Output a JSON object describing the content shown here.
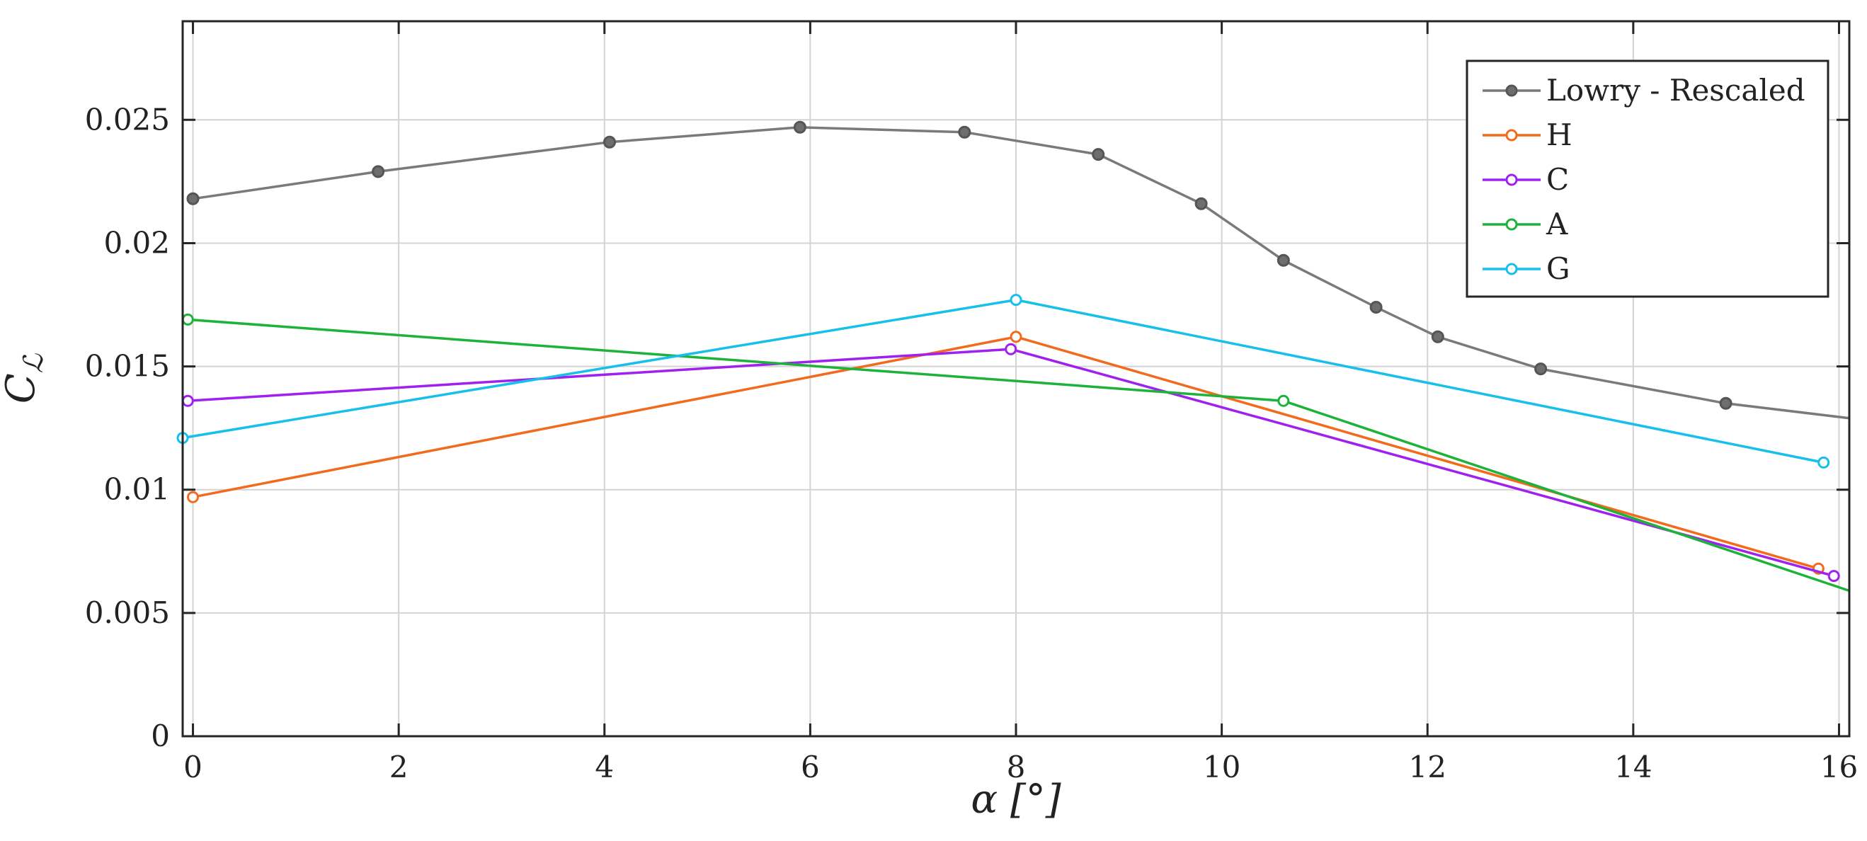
{
  "chart_data": {
    "type": "line",
    "title": "",
    "xlabel": "α [°]",
    "ylabel": "C_ℒ",
    "xlim": [
      -0.1,
      16.1
    ],
    "ylim": [
      0,
      0.029
    ],
    "x_ticks": [
      0,
      2,
      4,
      6,
      8,
      10,
      12,
      14,
      16
    ],
    "x_tick_labels": [
      "0",
      "2",
      "4",
      "6",
      "8",
      "10",
      "12",
      "14",
      "16"
    ],
    "y_ticks": [
      0,
      0.005,
      0.01,
      0.015,
      0.02,
      0.025
    ],
    "y_tick_labels": [
      "0",
      "0.005",
      "0.01",
      "0.015",
      "0.02",
      "0.025"
    ],
    "grid": true,
    "legend_position": "top-right",
    "series": [
      {
        "name": "Lowry - Rescaled",
        "color": "#7a7a7a",
        "marker": "filled-circle",
        "x": [
          0,
          1.8,
          4.05,
          5.9,
          7.5,
          8.8,
          9.8,
          10.6,
          11.5,
          12.1,
          13.1,
          14.9,
          16.1
        ],
        "y": [
          0.0218,
          0.0229,
          0.0241,
          0.0247,
          0.0245,
          0.0236,
          0.0216,
          0.0193,
          0.0174,
          0.0162,
          0.0149,
          0.0135,
          0.0129
        ],
        "markers_on": [
          true,
          true,
          true,
          true,
          true,
          true,
          true,
          true,
          true,
          true,
          true,
          true,
          false
        ]
      },
      {
        "name": "H",
        "color": "#f26b1d",
        "marker": "open-circle",
        "x": [
          0,
          8,
          15.8
        ],
        "y": [
          0.0097,
          0.0162,
          0.0068
        ],
        "markers_on": [
          true,
          true,
          true
        ]
      },
      {
        "name": "C",
        "color": "#a020f0",
        "marker": "open-circle",
        "x": [
          -0.05,
          7.95,
          15.95
        ],
        "y": [
          0.0136,
          0.0157,
          0.0065
        ],
        "markers_on": [
          true,
          true,
          true
        ]
      },
      {
        "name": "A",
        "color": "#1db33a",
        "marker": "open-circle",
        "x": [
          -0.05,
          10.6,
          16.1
        ],
        "y": [
          0.0169,
          0.0136,
          0.0059
        ],
        "markers_on": [
          true,
          true,
          false
        ]
      },
      {
        "name": "G",
        "color": "#16c0eb",
        "marker": "open-circle",
        "x": [
          -0.1,
          8,
          15.85
        ],
        "y": [
          0.0121,
          0.0177,
          0.0111
        ],
        "markers_on": [
          true,
          true,
          true
        ]
      }
    ]
  }
}
